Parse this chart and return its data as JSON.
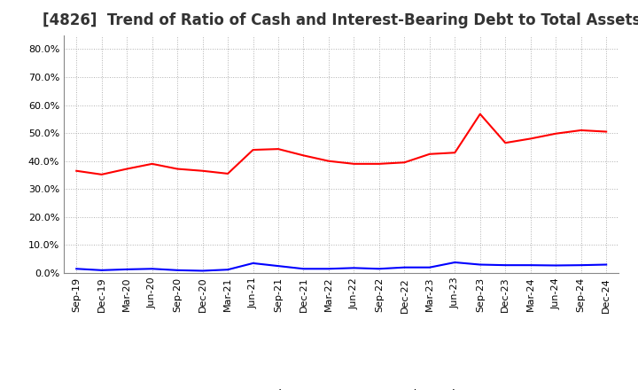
{
  "title": "[4826]  Trend of Ratio of Cash and Interest-Bearing Debt to Total Assets",
  "labels": [
    "Sep-19",
    "Dec-19",
    "Mar-20",
    "Jun-20",
    "Sep-20",
    "Dec-20",
    "Mar-21",
    "Jun-21",
    "Sep-21",
    "Dec-21",
    "Mar-22",
    "Jun-22",
    "Sep-22",
    "Dec-22",
    "Mar-23",
    "Jun-23",
    "Sep-23",
    "Dec-23",
    "Mar-24",
    "Jun-24",
    "Sep-24",
    "Dec-24"
  ],
  "cash": [
    0.365,
    0.352,
    0.372,
    0.39,
    0.372,
    0.365,
    0.355,
    0.44,
    0.443,
    0.42,
    0.4,
    0.39,
    0.39,
    0.395,
    0.425,
    0.43,
    0.568,
    0.465,
    0.48,
    0.498,
    0.51,
    0.505
  ],
  "debt": [
    0.015,
    0.01,
    0.013,
    0.015,
    0.01,
    0.008,
    0.012,
    0.035,
    0.025,
    0.015,
    0.015,
    0.018,
    0.015,
    0.02,
    0.02,
    0.038,
    0.03,
    0.028,
    0.028,
    0.027,
    0.028,
    0.03
  ],
  "cash_color": "#ff0000",
  "debt_color": "#0000ff",
  "bg_color": "#ffffff",
  "plot_bg_color": "#ffffff",
  "grid_color": "#b0b0b0",
  "ylim": [
    0.0,
    0.85
  ],
  "yticks": [
    0.0,
    0.1,
    0.2,
    0.3,
    0.4,
    0.5,
    0.6,
    0.7,
    0.8
  ],
  "title_fontsize": 12,
  "tick_fontsize": 8,
  "legend_labels": [
    "Cash",
    "Interest-Bearing Debt"
  ]
}
